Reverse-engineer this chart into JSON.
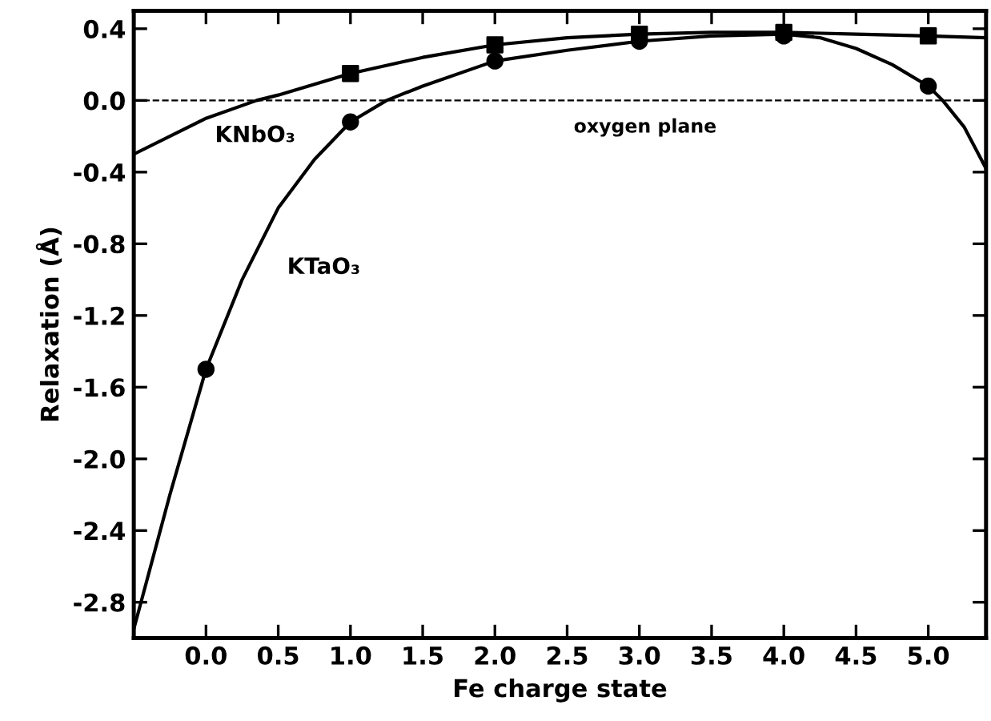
{
  "chart_data": {
    "type": "line",
    "xlabel": "Fe charge state",
    "ylabel": "Relaxation (Å)",
    "xlim": [
      -0.5,
      5.4
    ],
    "ylim": [
      -3.0,
      0.5
    ],
    "xticks": [
      {
        "value": 0,
        "label": "0.0"
      },
      {
        "value": 0.5,
        "label": "0.5"
      },
      {
        "value": 1,
        "label": "1.0"
      },
      {
        "value": 1.5,
        "label": "1.5"
      },
      {
        "value": 2,
        "label": "2.0"
      },
      {
        "value": 2.5,
        "label": "2.5"
      },
      {
        "value": 3,
        "label": "3.0"
      },
      {
        "value": 3.5,
        "label": "3.5"
      },
      {
        "value": 4,
        "label": "4.0"
      },
      {
        "value": 4.5,
        "label": "4.5"
      },
      {
        "value": 5,
        "label": "5.0"
      }
    ],
    "yticks": [
      {
        "value": 0.4,
        "label": "0.4"
      },
      {
        "value": 0,
        "label": "0.0"
      },
      {
        "value": -0.4,
        "label": "-0.4"
      },
      {
        "value": -0.8,
        "label": "-0.8"
      },
      {
        "value": -1.2,
        "label": "-1.2"
      },
      {
        "value": -1.6,
        "label": "-1.6"
      },
      {
        "value": -2.0,
        "label": "-2.0"
      },
      {
        "value": -2.4,
        "label": "-2.4"
      },
      {
        "value": -2.8,
        "label": "-2.8"
      }
    ],
    "grid": false,
    "legend": false,
    "ref_lines": [
      {
        "axis": "y",
        "value": 0,
        "label": "oxygen plane",
        "color": "#000000",
        "line_style": "dashed"
      }
    ],
    "series": [
      {
        "name": "KNbO₃",
        "color": "#000000",
        "marker": "none",
        "x": [
          -0.5,
          0,
          0.35,
          0.5,
          1,
          1.5,
          2,
          2.5,
          3,
          3.5,
          4,
          4.5,
          5,
          5.4
        ],
        "values": [
          -0.3,
          -0.1,
          0,
          0.03,
          0.15,
          0.24,
          0.31,
          0.35,
          0.37,
          0.38,
          0.38,
          0.37,
          0.36,
          0.35
        ]
      },
      {
        "name": "KTaO₃",
        "color": "#000000",
        "marker": "none",
        "x": [
          -0.5,
          -0.25,
          0,
          0.25,
          0.5,
          0.75,
          1,
          1.25,
          1.5,
          2,
          2.5,
          3,
          3.5,
          4,
          4.25,
          4.5,
          4.75,
          5,
          5.1,
          5.25,
          5.4
        ],
        "values": [
          -2.95,
          -2.2,
          -1.5,
          -1.0,
          -0.6,
          -0.33,
          -0.12,
          0.0,
          0.08,
          0.22,
          0.28,
          0.33,
          0.36,
          0.37,
          0.35,
          0.29,
          0.2,
          0.08,
          0.0,
          -0.15,
          -0.38
        ]
      },
      {
        "type": "scatter",
        "color": "#000000",
        "marker": "square",
        "x": [
          1,
          2,
          3,
          4,
          5
        ],
        "values": [
          0.15,
          0.31,
          0.37,
          0.38,
          0.36
        ]
      },
      {
        "type": "scatter",
        "color": "#000000",
        "marker": "circle",
        "x": [
          0,
          1,
          2,
          3,
          4,
          5
        ],
        "values": [
          -1.5,
          -0.12,
          0.22,
          0.33,
          0.36,
          0.08
        ]
      }
    ]
  }
}
